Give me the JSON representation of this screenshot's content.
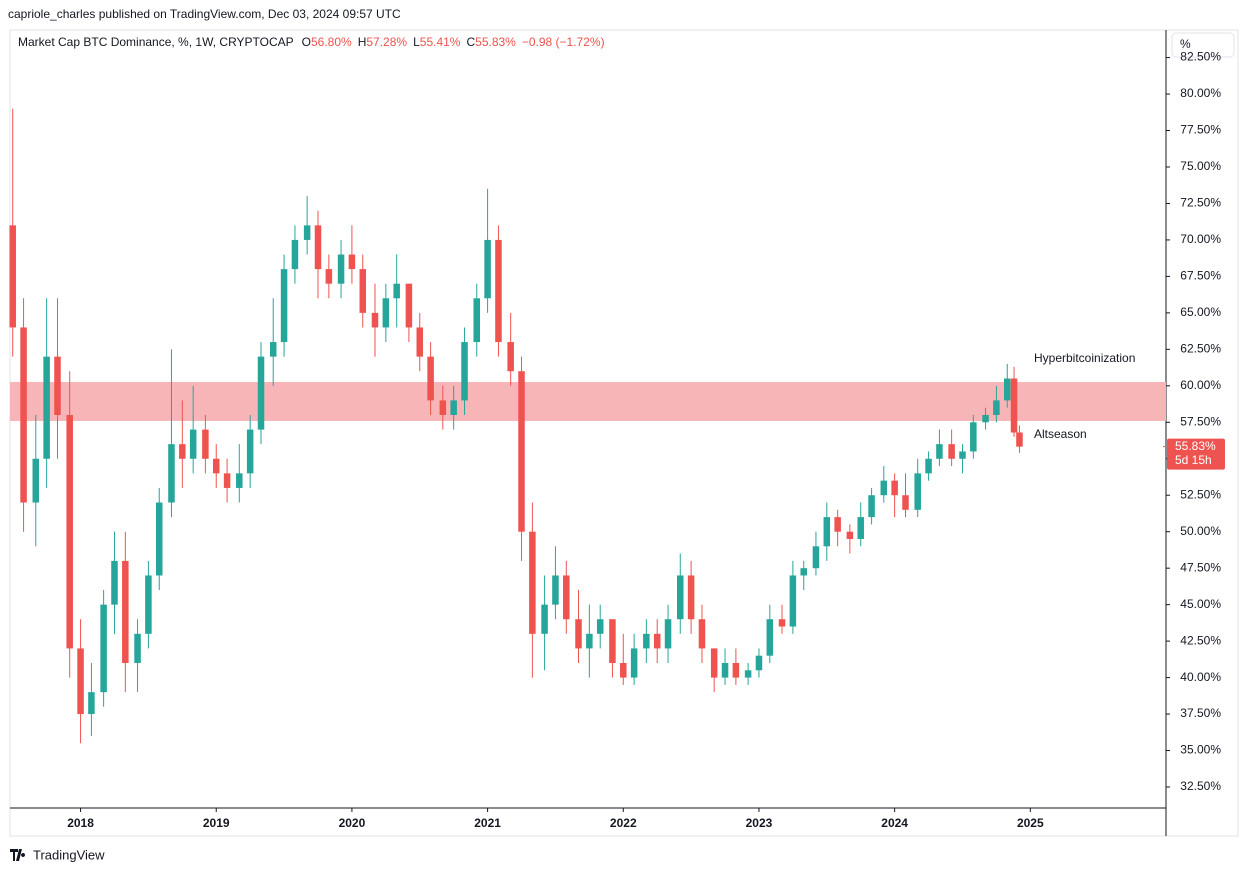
{
  "header": {
    "published": "capriole_charles published on TradingView.com, Dec 03, 2024 09:57 UTC",
    "symbol": "Market Cap BTC Dominance, %, 1W, CRYPTOCAP",
    "fields": [
      {
        "key": "O",
        "value": "56.80%"
      },
      {
        "key": "H",
        "value": "57.28%"
      },
      {
        "key": "L",
        "value": "55.41%"
      },
      {
        "key": "C",
        "value": "55.83%"
      }
    ],
    "change": "−0.98 (−1.72%)",
    "scale_button": "%",
    "footer": "TradingView"
  },
  "chart_data": {
    "type": "candlestick",
    "up_color": "#26a69a",
    "down_color": "#ef5350",
    "xlim": [
      2017.48,
      2026.0
    ],
    "xticks": [
      2018,
      2019,
      2020,
      2021,
      2022,
      2023,
      2024,
      2025
    ],
    "ylim": [
      31.06,
      84.39
    ],
    "yticks": [
      {
        "value": 32.5,
        "label": "32.50%"
      },
      {
        "value": 35,
        "label": "35.00%"
      },
      {
        "value": 37.5,
        "label": "37.50%"
      },
      {
        "value": 40,
        "label": "40.00%"
      },
      {
        "value": 42.5,
        "label": "42.50%"
      },
      {
        "value": 45,
        "label": "45.00%"
      },
      {
        "value": 47.5,
        "label": "47.50%"
      },
      {
        "value": 50,
        "label": "50.00%"
      },
      {
        "value": 52.5,
        "label": "52.50%"
      },
      {
        "value": 55,
        "label": "55.00%"
      },
      {
        "value": 57.5,
        "label": "57.50%"
      },
      {
        "value": 60,
        "label": "60.00%"
      },
      {
        "value": 62.5,
        "label": "62.50%"
      },
      {
        "value": 65,
        "label": "65.00%"
      },
      {
        "value": 67.5,
        "label": "67.50%"
      },
      {
        "value": 70,
        "label": "70.00%"
      },
      {
        "value": 72.5,
        "label": "72.50%"
      },
      {
        "value": 75,
        "label": "75.00%"
      },
      {
        "value": 77.5,
        "label": "77.50%"
      },
      {
        "value": 80,
        "label": "80.00%"
      },
      {
        "value": 82.5,
        "label": "82.50%"
      }
    ],
    "x": [
      2017.5,
      2017.58,
      2017.67,
      2017.75,
      2017.83,
      2017.92,
      2018.0,
      2018.08,
      2018.17,
      2018.25,
      2018.33,
      2018.42,
      2018.5,
      2018.58,
      2018.67,
      2018.75,
      2018.83,
      2018.92,
      2019.0,
      2019.08,
      2019.17,
      2019.25,
      2019.33,
      2019.42,
      2019.5,
      2019.58,
      2019.67,
      2019.75,
      2019.83,
      2019.92,
      2020.0,
      2020.08,
      2020.17,
      2020.25,
      2020.33,
      2020.42,
      2020.5,
      2020.58,
      2020.67,
      2020.75,
      2020.83,
      2020.92,
      2021.0,
      2021.08,
      2021.17,
      2021.25,
      2021.33,
      2021.42,
      2021.5,
      2021.58,
      2021.67,
      2021.75,
      2021.83,
      2021.92,
      2022.0,
      2022.08,
      2022.17,
      2022.25,
      2022.33,
      2022.42,
      2022.5,
      2022.58,
      2022.67,
      2022.75,
      2022.83,
      2022.92,
      2023.0,
      2023.08,
      2023.17,
      2023.25,
      2023.33,
      2023.42,
      2023.5,
      2023.58,
      2023.67,
      2023.75,
      2023.83,
      2023.92,
      2024.0,
      2024.08,
      2024.17,
      2024.25,
      2024.33,
      2024.42,
      2024.5,
      2024.58,
      2024.67,
      2024.75,
      2024.83,
      2024.88,
      2024.92
    ],
    "open": [
      71,
      64,
      52,
      55,
      62,
      58,
      42,
      37.5,
      39,
      45,
      48,
      41,
      43,
      47,
      52,
      56,
      55,
      57,
      55,
      54,
      53,
      54,
      57,
      62,
      63,
      68,
      70,
      71,
      68,
      67,
      69,
      68,
      65,
      64,
      66,
      67,
      64,
      62,
      59,
      58,
      59,
      63,
      66,
      70,
      63,
      61,
      50,
      43,
      45,
      47,
      44,
      42,
      43,
      44,
      41,
      40,
      42,
      43,
      42,
      44,
      47,
      44,
      42,
      40,
      41,
      40,
      40.5,
      41.5,
      44,
      43.5,
      47,
      47.5,
      49,
      51,
      50,
      49.5,
      51,
      52.5,
      53.5,
      52.5,
      51.5,
      54,
      55,
      56,
      55,
      55.5,
      57.5,
      58,
      59,
      60.5,
      56.8
    ],
    "high": [
      79,
      66,
      58,
      66,
      66,
      61,
      44,
      41,
      46,
      50,
      50,
      44,
      48,
      53,
      62.5,
      59,
      60,
      58,
      56,
      55,
      56,
      58,
      63,
      66,
      69,
      71,
      73,
      72,
      69,
      70,
      71,
      69,
      67,
      67,
      69,
      67,
      65,
      63,
      60,
      60,
      64,
      67,
      73.5,
      71,
      65,
      62,
      52,
      47,
      49,
      48,
      46,
      45,
      45,
      44,
      43,
      43,
      44,
      44,
      45,
      48.5,
      48,
      45,
      42,
      42,
      42,
      41,
      42,
      45,
      45,
      48,
      48,
      50,
      52,
      51.5,
      50.5,
      52,
      53,
      54.5,
      54,
      54,
      55,
      55.5,
      57,
      57,
      56,
      58,
      58.5,
      60,
      61.5,
      61.3,
      57.28
    ],
    "low": [
      62,
      50,
      49,
      53,
      55,
      40,
      35.5,
      36,
      38,
      43,
      39,
      39,
      42,
      46,
      51,
      53,
      54,
      54,
      53,
      52,
      52,
      53,
      56,
      60,
      62,
      67,
      69,
      66,
      66,
      66,
      67,
      64,
      62,
      63,
      64,
      63,
      61,
      58,
      57,
      57,
      58,
      62,
      65,
      62,
      60,
      48,
      40,
      40.5,
      44,
      43,
      41,
      40,
      42,
      40,
      39.5,
      39.5,
      41,
      41,
      41,
      43,
      43,
      41,
      39,
      39.5,
      39.5,
      39.5,
      40,
      41,
      43,
      43,
      46,
      47,
      48,
      49,
      48.5,
      49,
      50.5,
      52,
      51,
      51,
      51,
      53.5,
      54.5,
      54.5,
      54,
      55,
      57,
      57.5,
      58.5,
      56.5,
      55.41
    ],
    "close": [
      64,
      52,
      55,
      62,
      58,
      42,
      37.5,
      39,
      45,
      48,
      41,
      43,
      47,
      52,
      56,
      55,
      57,
      55,
      54,
      53,
      54,
      57,
      62,
      63,
      68,
      70,
      71,
      68,
      67,
      69,
      68,
      65,
      64,
      66,
      67,
      64,
      62,
      59,
      58,
      59,
      63,
      66,
      70,
      63,
      61,
      50,
      43,
      45,
      47,
      44,
      42,
      43,
      44,
      41,
      40,
      42,
      43,
      42,
      44,
      47,
      44,
      42,
      40,
      41,
      40,
      40.5,
      41.5,
      44,
      43.5,
      47,
      47.5,
      49,
      51,
      50,
      49.5,
      51,
      52.5,
      53.5,
      52.5,
      51.5,
      54,
      55,
      56,
      55,
      55.5,
      57.5,
      58,
      59,
      60.5,
      56.8,
      55.83
    ],
    "last_label": "55.83%",
    "countdown": "5d 15h",
    "band": {
      "ylim": [
        57.59,
        60.26
      ],
      "color": "#f8b5b8"
    },
    "annotations": [
      "Hyperbitcoinization",
      "Altseason"
    ]
  }
}
